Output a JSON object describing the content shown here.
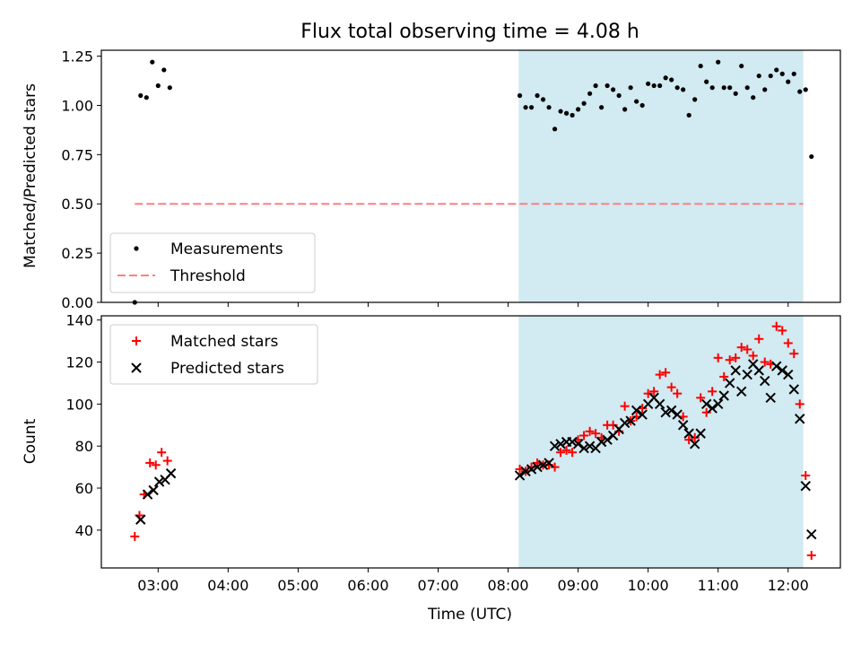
{
  "title": "Flux total observing time = 4.08 h",
  "xlabel": "Time (UTC)",
  "x_ticks": [
    "03:00",
    "04:00",
    "05:00",
    "06:00",
    "07:00",
    "08:00",
    "09:00",
    "10:00",
    "11:00",
    "12:00"
  ],
  "colors": {
    "shade": "#add8e6",
    "threshold": "#ff7f7f",
    "matched": "#ff0000",
    "predicted": "#000000",
    "measure": "#000000"
  },
  "chart_data": [
    {
      "type": "scatter",
      "ylabel": "Matched/Predicted stars",
      "ylim": [
        0,
        1.28
      ],
      "y_ticks": [
        "0.00",
        "0.25",
        "0.50",
        "0.75",
        "1.00",
        "1.25"
      ],
      "shaded_region": [
        "08:09",
        "12:13"
      ],
      "threshold": 0.5,
      "threshold_x": [
        "02:40",
        "12:13"
      ],
      "legend": {
        "placement": "lower-left",
        "entries": [
          "Measurements",
          "Threshold"
        ]
      },
      "series": [
        {
          "name": "Measurements",
          "points": [
            [
              "02:40",
              0.0
            ],
            [
              "02:45",
              1.05
            ],
            [
              "02:50",
              1.04
            ],
            [
              "02:55",
              1.22
            ],
            [
              "03:00",
              1.1
            ],
            [
              "03:05",
              1.18
            ],
            [
              "03:10",
              1.09
            ],
            [
              "08:10",
              1.05
            ],
            [
              "08:15",
              0.99
            ],
            [
              "08:20",
              0.99
            ],
            [
              "08:25",
              1.05
            ],
            [
              "08:30",
              1.03
            ],
            [
              "08:35",
              0.99
            ],
            [
              "08:40",
              0.88
            ],
            [
              "08:45",
              0.97
            ],
            [
              "08:50",
              0.96
            ],
            [
              "08:55",
              0.95
            ],
            [
              "09:00",
              0.98
            ],
            [
              "09:05",
              1.01
            ],
            [
              "09:10",
              1.06
            ],
            [
              "09:15",
              1.1
            ],
            [
              "09:20",
              0.99
            ],
            [
              "09:25",
              1.1
            ],
            [
              "09:30",
              1.08
            ],
            [
              "09:35",
              1.05
            ],
            [
              "09:40",
              0.98
            ],
            [
              "09:45",
              1.09
            ],
            [
              "09:50",
              1.02
            ],
            [
              "09:55",
              1.0
            ],
            [
              "10:00",
              1.11
            ],
            [
              "10:05",
              1.1
            ],
            [
              "10:10",
              1.1
            ],
            [
              "10:15",
              1.14
            ],
            [
              "10:20",
              1.13
            ],
            [
              "10:25",
              1.09
            ],
            [
              "10:30",
              1.08
            ],
            [
              "10:35",
              0.95
            ],
            [
              "10:40",
              1.03
            ],
            [
              "10:45",
              1.2
            ],
            [
              "10:50",
              1.12
            ],
            [
              "10:55",
              1.09
            ],
            [
              "11:00",
              1.22
            ],
            [
              "11:05",
              1.09
            ],
            [
              "11:10",
              1.09
            ],
            [
              "11:15",
              1.06
            ],
            [
              "11:20",
              1.2
            ],
            [
              "11:25",
              1.09
            ],
            [
              "11:30",
              1.04
            ],
            [
              "11:35",
              1.15
            ],
            [
              "11:40",
              1.08
            ],
            [
              "11:45",
              1.15
            ],
            [
              "11:50",
              1.18
            ],
            [
              "11:55",
              1.16
            ],
            [
              "12:00",
              1.12
            ],
            [
              "12:05",
              1.16
            ],
            [
              "12:10",
              1.07
            ],
            [
              "12:15",
              1.08
            ],
            [
              "12:20",
              0.74
            ]
          ]
        }
      ]
    },
    {
      "type": "scatter",
      "ylabel": "Count",
      "ylim": [
        22,
        142
      ],
      "y_ticks": [
        "40",
        "60",
        "80",
        "100",
        "120",
        "140"
      ],
      "shaded_region": [
        "08:09",
        "12:13"
      ],
      "legend": {
        "placement": "upper-left",
        "entries": [
          "Matched stars",
          "Predicted stars"
        ]
      },
      "series": [
        {
          "name": "Matched stars",
          "marker": "+",
          "points": [
            [
              "02:40",
              37
            ],
            [
              "02:44",
              47
            ],
            [
              "02:48",
              57
            ],
            [
              "02:53",
              72
            ],
            [
              "02:58",
              71
            ],
            [
              "03:03",
              77
            ],
            [
              "03:08",
              73
            ],
            [
              "08:10",
              69
            ],
            [
              "08:15",
              68
            ],
            [
              "08:20",
              70
            ],
            [
              "08:25",
              72
            ],
            [
              "08:30",
              71
            ],
            [
              "08:35",
              71
            ],
            [
              "08:40",
              70
            ],
            [
              "08:45",
              77
            ],
            [
              "08:50",
              78
            ],
            [
              "08:55",
              77
            ],
            [
              "09:00",
              83
            ],
            [
              "09:05",
              85
            ],
            [
              "09:10",
              87
            ],
            [
              "09:15",
              86
            ],
            [
              "09:20",
              84
            ],
            [
              "09:25",
              90
            ],
            [
              "09:30",
              90
            ],
            [
              "09:35",
              87
            ],
            [
              "09:40",
              99
            ],
            [
              "09:45",
              92
            ],
            [
              "09:50",
              94
            ],
            [
              "09:55",
              98
            ],
            [
              "10:00",
              105
            ],
            [
              "10:05",
              106
            ],
            [
              "10:10",
              114
            ],
            [
              "10:15",
              115
            ],
            [
              "10:20",
              108
            ],
            [
              "10:25",
              105
            ],
            [
              "10:30",
              94
            ],
            [
              "10:35",
              83
            ],
            [
              "10:40",
              84
            ],
            [
              "10:45",
              103
            ],
            [
              "10:50",
              96
            ],
            [
              "10:55",
              106
            ],
            [
              "11:00",
              122
            ],
            [
              "11:05",
              113
            ],
            [
              "11:10",
              121
            ],
            [
              "11:15",
              122
            ],
            [
              "11:20",
              127
            ],
            [
              "11:25",
              126
            ],
            [
              "11:30",
              123
            ],
            [
              "11:35",
              131
            ],
            [
              "11:40",
              120
            ],
            [
              "11:45",
              119
            ],
            [
              "11:50",
              137
            ],
            [
              "11:55",
              135
            ],
            [
              "12:00",
              129
            ],
            [
              "12:05",
              124
            ],
            [
              "12:10",
              100
            ],
            [
              "12:15",
              66
            ],
            [
              "12:20",
              28
            ]
          ]
        },
        {
          "name": "Predicted stars",
          "marker": "x",
          "points": [
            [
              "02:45",
              45
            ],
            [
              "02:51",
              57
            ],
            [
              "02:56",
              59
            ],
            [
              "03:01",
              63
            ],
            [
              "03:06",
              64
            ],
            [
              "03:11",
              67
            ],
            [
              "08:10",
              66
            ],
            [
              "08:15",
              68
            ],
            [
              "08:20",
              69
            ],
            [
              "08:25",
              70
            ],
            [
              "08:30",
              71
            ],
            [
              "08:35",
              72
            ],
            [
              "08:40",
              80
            ],
            [
              "08:45",
              81
            ],
            [
              "08:50",
              82
            ],
            [
              "08:55",
              82
            ],
            [
              "09:00",
              81
            ],
            [
              "09:05",
              79
            ],
            [
              "09:10",
              80
            ],
            [
              "09:15",
              79
            ],
            [
              "09:20",
              82
            ],
            [
              "09:25",
              83
            ],
            [
              "09:30",
              85
            ],
            [
              "09:35",
              88
            ],
            [
              "09:40",
              91
            ],
            [
              "09:45",
              92
            ],
            [
              "09:50",
              97
            ],
            [
              "09:55",
              95
            ],
            [
              "10:00",
              100
            ],
            [
              "10:05",
              103
            ],
            [
              "10:10",
              100
            ],
            [
              "10:15",
              96
            ],
            [
              "10:20",
              97
            ],
            [
              "10:25",
              95
            ],
            [
              "10:30",
              90
            ],
            [
              "10:35",
              86
            ],
            [
              "10:40",
              81
            ],
            [
              "10:45",
              86
            ],
            [
              "10:50",
              100
            ],
            [
              "10:55",
              98
            ],
            [
              "11:00",
              100
            ],
            [
              "11:05",
              104
            ],
            [
              "11:10",
              110
            ],
            [
              "11:15",
              116
            ],
            [
              "11:20",
              106
            ],
            [
              "11:25",
              114
            ],
            [
              "11:30",
              119
            ],
            [
              "11:35",
              116
            ],
            [
              "11:40",
              111
            ],
            [
              "11:45",
              103
            ],
            [
              "11:50",
              118
            ],
            [
              "11:55",
              116
            ],
            [
              "12:00",
              114
            ],
            [
              "12:05",
              107
            ],
            [
              "12:10",
              93
            ],
            [
              "12:15",
              61
            ],
            [
              "12:20",
              38
            ]
          ]
        }
      ]
    }
  ]
}
